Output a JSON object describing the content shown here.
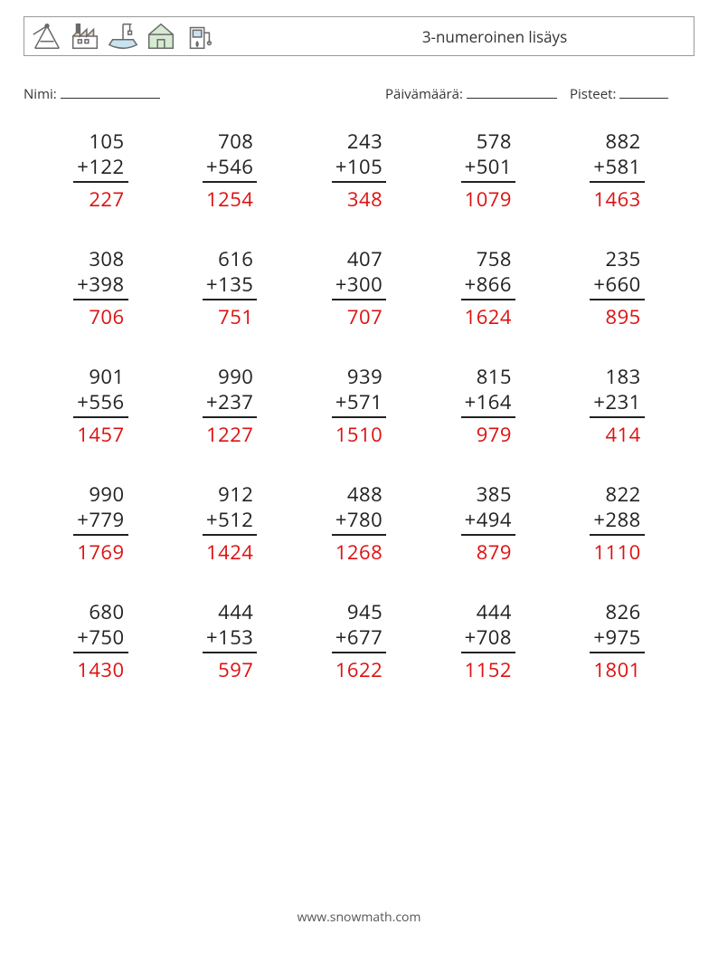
{
  "title": "3-numeroinen lisäys",
  "labels": {
    "name": "Nimi:",
    "date": "Päivämäärä:",
    "score": "Pisteet:"
  },
  "style": {
    "text_color": "#222222",
    "answer_color": "#dd1111",
    "rule_color": "#222222",
    "font_size_problem": 22,
    "font_size_title": 17,
    "font_size_meta": 15,
    "background": "#ffffff",
    "blank_widths": {
      "name": 110,
      "date": 100,
      "score": 54
    }
  },
  "footer": "www.snowmath.com",
  "icon_colors": {
    "outline": "#6a6a6a",
    "accent1": "#4aa3c7",
    "accent2": "#5fb04f",
    "accent3": "#c07a3a"
  },
  "grid": {
    "rows": 5,
    "cols": 5
  },
  "problems": [
    {
      "a": 105,
      "b": 122,
      "ans": 227
    },
    {
      "a": 708,
      "b": 546,
      "ans": 1254
    },
    {
      "a": 243,
      "b": 105,
      "ans": 348
    },
    {
      "a": 578,
      "b": 501,
      "ans": 1079
    },
    {
      "a": 882,
      "b": 581,
      "ans": 1463
    },
    {
      "a": 308,
      "b": 398,
      "ans": 706
    },
    {
      "a": 616,
      "b": 135,
      "ans": 751
    },
    {
      "a": 407,
      "b": 300,
      "ans": 707
    },
    {
      "a": 758,
      "b": 866,
      "ans": 1624
    },
    {
      "a": 235,
      "b": 660,
      "ans": 895
    },
    {
      "a": 901,
      "b": 556,
      "ans": 1457
    },
    {
      "a": 990,
      "b": 237,
      "ans": 1227
    },
    {
      "a": 939,
      "b": 571,
      "ans": 1510
    },
    {
      "a": 815,
      "b": 164,
      "ans": 979
    },
    {
      "a": 183,
      "b": 231,
      "ans": 414
    },
    {
      "a": 990,
      "b": 779,
      "ans": 1769
    },
    {
      "a": 912,
      "b": 512,
      "ans": 1424
    },
    {
      "a": 488,
      "b": 780,
      "ans": 1268
    },
    {
      "a": 385,
      "b": 494,
      "ans": 879
    },
    {
      "a": 822,
      "b": 288,
      "ans": 1110
    },
    {
      "a": 680,
      "b": 750,
      "ans": 1430
    },
    {
      "a": 444,
      "b": 153,
      "ans": 597
    },
    {
      "a": 945,
      "b": 677,
      "ans": 1622
    },
    {
      "a": 444,
      "b": 708,
      "ans": 1152
    },
    {
      "a": 826,
      "b": 975,
      "ans": 1801
    }
  ]
}
